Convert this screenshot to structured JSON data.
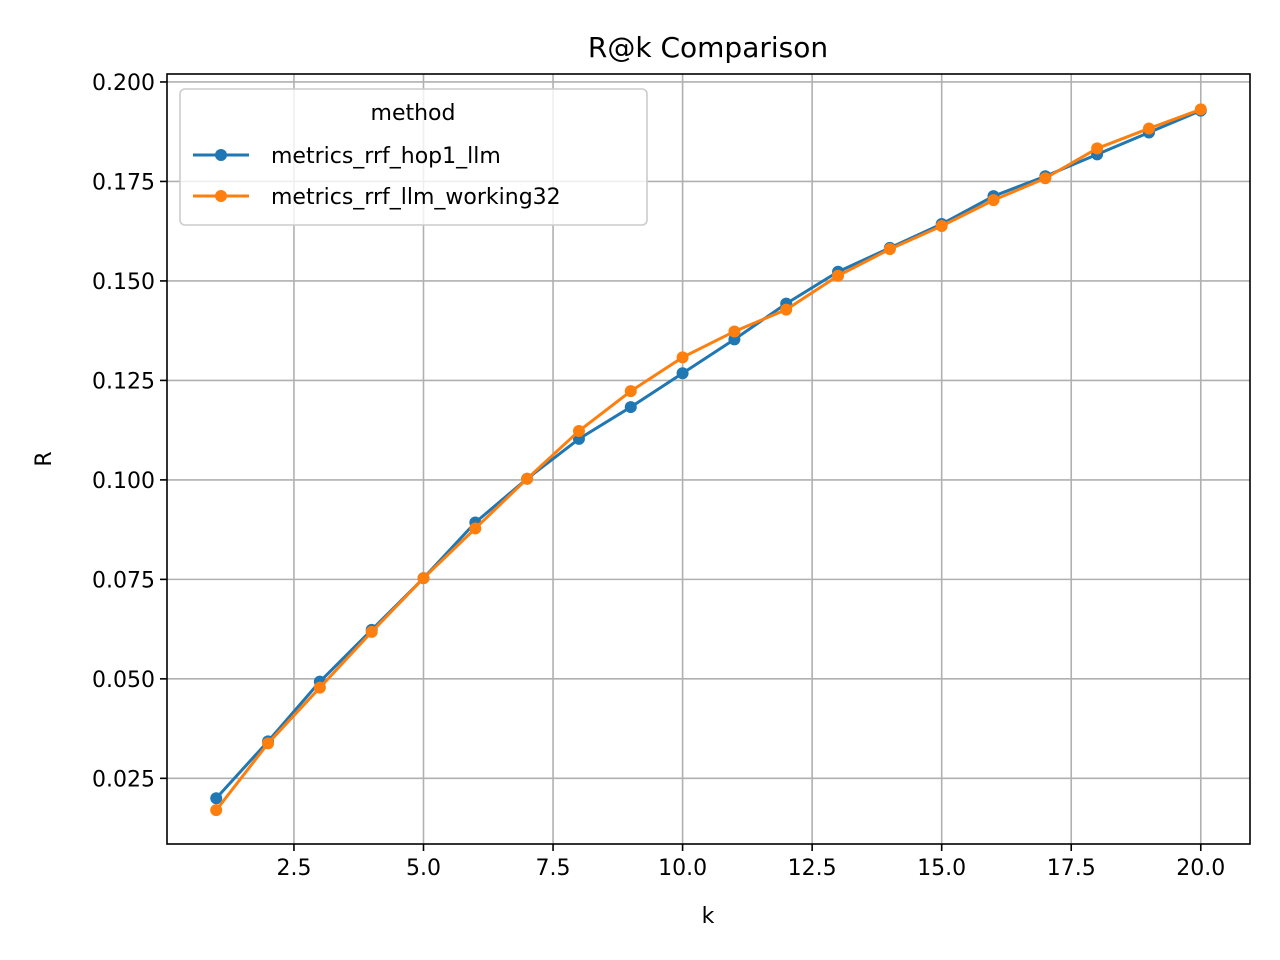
{
  "chart_data": {
    "type": "line",
    "title": "R@k Comparison",
    "xlabel": "k",
    "ylabel": "R",
    "xlim": [
      0.05,
      20.95
    ],
    "ylim": [
      0.0085,
      0.202
    ],
    "xticks": [
      2.5,
      5.0,
      7.5,
      10.0,
      12.5,
      15.0,
      17.5,
      20.0
    ],
    "xtick_labels": [
      "2.5",
      "5.0",
      "7.5",
      "10.0",
      "12.5",
      "15.0",
      "17.5",
      "20.0"
    ],
    "yticks": [
      0.025,
      0.05,
      0.075,
      0.1,
      0.125,
      0.15,
      0.175,
      0.2
    ],
    "ytick_labels": [
      "0.025",
      "0.050",
      "0.075",
      "0.100",
      "0.125",
      "0.150",
      "0.175",
      "0.200"
    ],
    "grid": true,
    "legend": {
      "title": "method",
      "placement": "top-left"
    },
    "x": [
      1,
      2,
      3,
      4,
      5,
      6,
      7,
      8,
      9,
      10,
      11,
      12,
      13,
      14,
      15,
      16,
      17,
      18,
      19,
      20
    ],
    "series": [
      {
        "name": "metrics_rrf_hop1_llm",
        "color": "#1f77b4",
        "values": [
          0.02,
          0.0343,
          0.0493,
          0.0623,
          0.0753,
          0.0893,
          0.1003,
          0.1103,
          0.1183,
          0.1268,
          0.1353,
          0.1443,
          0.1523,
          0.1583,
          0.1643,
          0.1713,
          0.1763,
          0.1818,
          0.1873,
          0.1928
        ]
      },
      {
        "name": "metrics_rrf_llm_working32",
        "color": "#ff7f0e",
        "values": [
          0.017,
          0.0338,
          0.0478,
          0.0618,
          0.0753,
          0.0878,
          0.1003,
          0.1123,
          0.1223,
          0.1308,
          0.1373,
          0.1428,
          0.1513,
          0.158,
          0.1638,
          0.1703,
          0.1758,
          0.1833,
          0.1883,
          0.1931
        ]
      }
    ]
  }
}
